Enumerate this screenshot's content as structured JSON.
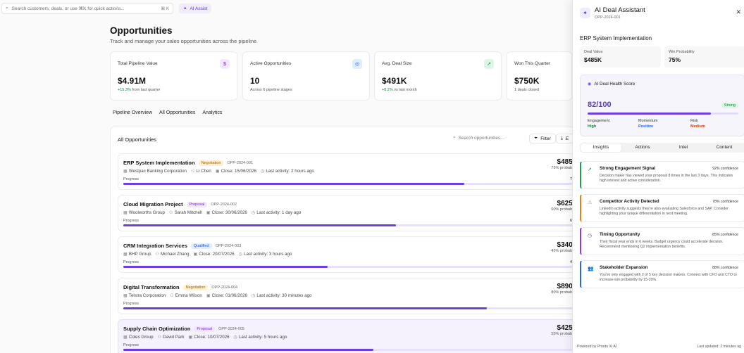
{
  "topbar": {
    "search_placeholder": "Search customers, deals, or use ⌘K for quick actions...",
    "shortcut": "⌘ K",
    "ai_assist": "AI Assist"
  },
  "page": {
    "title": "Opportunities",
    "subtitle": "Track and manage your sales opportunities across the pipeline"
  },
  "stats": [
    {
      "label": "Total Pipeline Value",
      "value": "$4.91M",
      "delta": "+15.3%",
      "sub": "from last quarter",
      "icon": "dollar-icon",
      "glyph": "$",
      "color": "#7e22ce",
      "bg": "#f3e8ff"
    },
    {
      "label": "Active Opportunities",
      "value": "10",
      "delta": "",
      "sub": "Across 6 pipeline stages",
      "icon": "target-icon",
      "glyph": "◎",
      "color": "#2563eb",
      "bg": "#e0edfd"
    },
    {
      "label": "Avg. Deal Size",
      "value": "$491K",
      "delta": "+8.2%",
      "sub": "vs last month",
      "icon": "trend-up-icon",
      "glyph": "↗",
      "color": "#15803d",
      "bg": "#dcf5e4"
    },
    {
      "label": "Won This Quarter",
      "value": "$750K",
      "delta": "",
      "sub": "1 deals closed",
      "icon": "award-icon",
      "glyph": "",
      "color": "#555",
      "bg": "#fff"
    }
  ],
  "tabs": [
    "Pipeline Overview",
    "All Opportunities",
    "Analytics"
  ],
  "list": {
    "title": "All Opportunities",
    "search_placeholder": "Search opportunities...",
    "filter": "Filter",
    "export": "E",
    "progress_label": "Progress",
    "items": [
      {
        "name": "ERP System Implementation",
        "stage": "Negotiation",
        "id": "OPP-2024-001",
        "company": "Westpac Banking Corporation",
        "owner": "Li Chen",
        "close": "Close: 15/06/2026",
        "activity": "Last activity: 2 hours ago",
        "amount": "$485K",
        "prob": "75% probability",
        "pct": "75%",
        "progress": 75
      },
      {
        "name": "Cloud Migration Project",
        "stage": "Proposal",
        "id": "OPP-2024-002",
        "company": "Woolworths Group",
        "owner": "Sarah Mitchell",
        "close": "Close: 30/06/2026",
        "activity": "Last activity: 1 day ago",
        "amount": "$625K",
        "prob": "60% probability",
        "pct": "60%",
        "progress": 60
      },
      {
        "name": "CRM Integration Services",
        "stage": "Qualified",
        "id": "OPP-2024-003",
        "company": "BHP Group",
        "owner": "Michael Zhang",
        "close": "Close: 20/07/2026",
        "activity": "Last activity: 3 hours ago",
        "amount": "$340K",
        "prob": "45% probability",
        "pct": "45%",
        "progress": 45
      },
      {
        "name": "Digital Transformation",
        "stage": "Negotiation",
        "id": "OPP-2024-004",
        "company": "Telstra Corporation",
        "owner": "Emma Wilson",
        "close": "Close: 01/06/2026",
        "activity": "Last activity: 30 minutes ago",
        "amount": "$890K",
        "prob": "80% probability",
        "pct": "80",
        "progress": 80
      },
      {
        "name": "Supply Chain Optimization",
        "stage": "Proposal",
        "id": "OPP-2024-005",
        "company": "Coles Group",
        "owner": "David Park",
        "close": "Close: 10/07/2026",
        "activity": "Last activity: 5 hours ago",
        "amount": "$425K",
        "prob": "55% probability",
        "pct": "55",
        "progress": 55
      }
    ]
  },
  "drawer": {
    "title": "AI Deal Assistant",
    "id": "OPP-2024-001",
    "deal": "ERP System Implementation",
    "deal_value_label": "Deal Value",
    "deal_value": "$485K",
    "win_prob_label": "Win Probability",
    "win_prob": "75%",
    "health_title": "AI Deal Health Score",
    "score": "82/100",
    "score_value": 82,
    "score_badge": "Strong",
    "metrics": [
      {
        "label": "Engagement",
        "value": "High",
        "color": "#15803d"
      },
      {
        "label": "Momentum",
        "value": "Positive",
        "color": "#2563eb"
      },
      {
        "label": "Risk",
        "value": "Medium",
        "color": "#c2410c"
      }
    ],
    "tabs": [
      "Insights",
      "Actions",
      "Intel",
      "Content"
    ],
    "insights": [
      {
        "title": "Strong Engagement Signal",
        "conf": "92% confidence",
        "desc": "Decision maker has viewed your proposal 8 times in the last 3 days. This indicates high interest and active consideration.",
        "color": "#16a34a",
        "icon": "trend-up-icon",
        "glyph": "↗"
      },
      {
        "title": "Competitor Activity Detected",
        "conf": "78% confidence",
        "desc": "LinkedIn activity suggests they're also evaluating Salesforce and SAP. Consider highlighting your unique differentiation in next meeting.",
        "color": "#ea7a16",
        "icon": "warning-icon",
        "glyph": "⚠"
      },
      {
        "title": "Timing Opportunity",
        "conf": "85% confidence",
        "desc": "Their fiscal year ends in 6 weeks. Budget urgency could accelerate decision. Recommend mentioning Q2 implementation benefits.",
        "color": "#9333ea",
        "icon": "clock-icon",
        "glyph": "◷"
      },
      {
        "title": "Stakeholder Expansion",
        "conf": "88% confidence",
        "desc": "You've only engaged with 2 of 5 key decision makers. Connect with CFO and CTO to increase win probability by 15-20%.",
        "color": "#2563eb",
        "icon": "users-icon",
        "glyph": "👥"
      }
    ],
    "footer_left": "Powered by Pronto Xi AI",
    "footer_right": "Last updated: 2 minutes ag"
  }
}
